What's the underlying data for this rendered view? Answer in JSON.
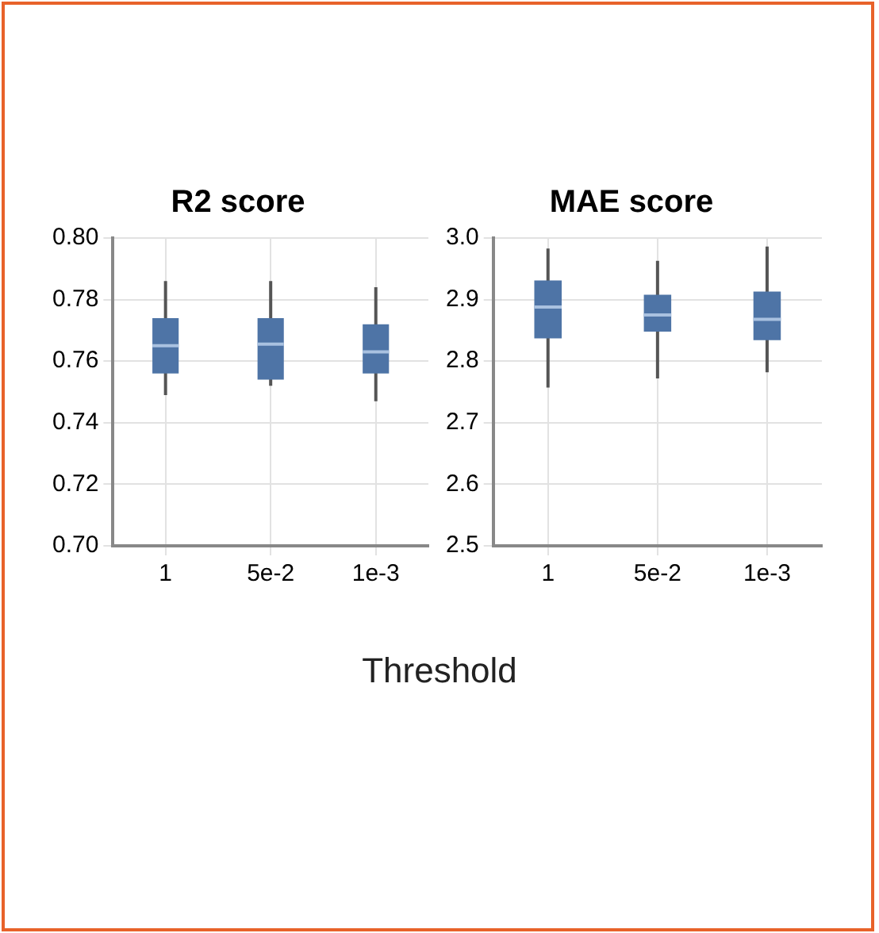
{
  "chart_data": [
    {
      "type": "box",
      "title": "R2 score",
      "xlabel": "Threshold",
      "categories": [
        "1",
        "5e-2",
        "1e-3"
      ],
      "color": "#4e74a6",
      "boxes": [
        {
          "low": 0.749,
          "q1": 0.756,
          "median": 0.765,
          "q3": 0.774,
          "high": 0.786
        },
        {
          "low": 0.752,
          "q1": 0.754,
          "median": 0.7655,
          "q3": 0.774,
          "high": 0.786
        },
        {
          "low": 0.747,
          "q1": 0.756,
          "median": 0.763,
          "q3": 0.772,
          "high": 0.784
        }
      ],
      "ylim": [
        0.7,
        0.8
      ],
      "yticks": [
        {
          "value": 0.7,
          "label": "0.70"
        },
        0.72,
        0.74,
        0.76,
        0.78,
        {
          "value": 0.8,
          "label": "0.80"
        }
      ],
      "grid": true
    },
    {
      "type": "box",
      "title": "MAE score",
      "categories": [
        "1",
        "5e-2",
        "1e-3"
      ],
      "color": "#4e74a6",
      "boxes": [
        {
          "low": 2.757,
          "q1": 2.837,
          "median": 2.888,
          "q3": 2.931,
          "high": 2.983
        },
        {
          "low": 2.772,
          "q1": 2.848,
          "median": 2.875,
          "q3": 2.908,
          "high": 2.963
        },
        {
          "low": 2.782,
          "q1": 2.834,
          "median": 2.868,
          "q3": 2.913,
          "high": 2.986
        }
      ],
      "ylim": [
        2.5,
        3.0
      ],
      "yticks": [
        2.5,
        2.6,
        2.7,
        2.8,
        2.9,
        {
          "value": 3.0,
          "label": "3.0"
        }
      ],
      "grid": true
    }
  ]
}
